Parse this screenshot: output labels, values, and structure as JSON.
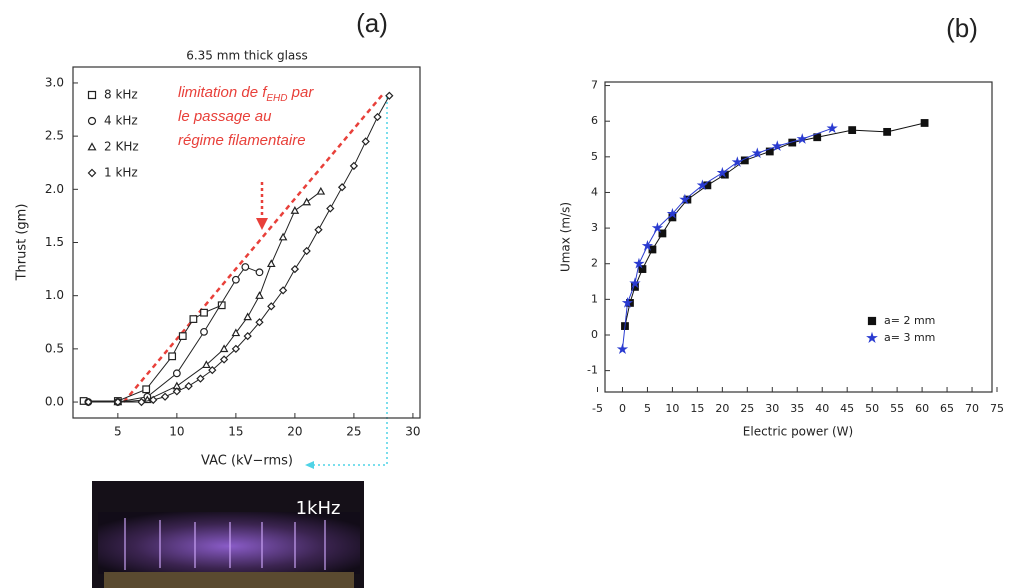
{
  "chart_data": [
    {
      "type": "line",
      "panel_label": "(a)",
      "title": "6.35 mm thick glass",
      "x_label": "VAC (kV−rms)",
      "y_label": "Thrust (gm)",
      "xlim": [
        1.2,
        30.6
      ],
      "ylim": [
        -0.15,
        3.15
      ],
      "xticks": [
        5,
        10,
        15,
        20,
        25,
        30
      ],
      "yticks": [
        {
          "value": 0,
          "label": "0.0"
        },
        {
          "value": 0.5,
          "label": "0.5"
        },
        {
          "value": 1,
          "label": "1.0"
        },
        {
          "value": 1.5,
          "label": "1.5"
        },
        {
          "value": 2,
          "label": "2.0"
        },
        {
          "value": 2.5,
          "label": "2.5"
        },
        {
          "value": 3,
          "label": "3.0"
        }
      ],
      "legend": "upper left",
      "filled_markers": false,
      "series": [
        {
          "name": "8  kHz",
          "marker": "square",
          "color": "#222222",
          "x": [
            2.1,
            5,
            7.4,
            9.6,
            10.5,
            11.4,
            12.3,
            13.8
          ],
          "values": [
            0.01,
            0.01,
            0.12,
            0.43,
            0.62,
            0.78,
            0.84,
            0.91
          ]
        },
        {
          "name": "4  kHz",
          "marker": "circle",
          "color": "#222222",
          "x": [
            2.5,
            5,
            7.5,
            10,
            12.3,
            15,
            15.8,
            17
          ],
          "values": [
            0,
            0,
            0.05,
            0.27,
            0.66,
            1.15,
            1.27,
            1.22
          ]
        },
        {
          "name": "2  KHz",
          "marker": "triangle",
          "color": "#222222",
          "x": [
            5,
            7.5,
            10,
            12.5,
            14,
            15,
            16,
            17,
            18,
            19,
            20,
            21,
            22.2
          ],
          "values": [
            0,
            0.02,
            0.15,
            0.35,
            0.5,
            0.65,
            0.8,
            1.0,
            1.3,
            1.55,
            1.8,
            1.88,
            1.98
          ]
        },
        {
          "name": "1  kHz",
          "marker": "diamond",
          "color": "#222222",
          "x": [
            2.5,
            5,
            7,
            8,
            9,
            10,
            11,
            12,
            13,
            14,
            15,
            16,
            17,
            18,
            19,
            20,
            21,
            22,
            23,
            24,
            25,
            26,
            27,
            28
          ],
          "values": [
            0,
            0,
            0,
            0.02,
            0.05,
            0.1,
            0.15,
            0.22,
            0.3,
            0.4,
            0.5,
            0.62,
            0.75,
            0.9,
            1.05,
            1.25,
            1.42,
            1.62,
            1.82,
            2.02,
            2.22,
            2.45,
            2.68,
            2.88
          ]
        }
      ],
      "annotation_line": {
        "color": "#e8403a",
        "x": [
          5.5,
          27.5
        ],
        "values": [
          0,
          2.9
        ]
      },
      "annotation": {
        "before_subscript": "limitation de f",
        "subscript": "EHD",
        "after_subscript": " par",
        "line2": "le passage au",
        "line3": "régime filamentaire"
      }
    },
    {
      "type": "line",
      "panel_label": "(b)",
      "x_label": "Electric power (W)",
      "y_label": "Umax (m/s)",
      "xlim": [
        -3.5,
        74
      ],
      "ylim": [
        -1.6,
        7.1
      ],
      "xticks": [
        -5,
        0,
        5,
        10,
        15,
        20,
        25,
        30,
        35,
        40,
        45,
        50,
        55,
        60,
        65,
        70,
        75
      ],
      "yticks": [
        -1,
        0,
        1,
        2,
        3,
        4,
        5,
        6,
        7
      ],
      "legend": "lower right",
      "filled_markers": true,
      "series": [
        {
          "name": "a= 2 mm",
          "marker": "square",
          "color": "#111111",
          "x": [
            0.5,
            1.5,
            2.5,
            4,
            6,
            8,
            10,
            13,
            17,
            20.5,
            24.5,
            29.5,
            34,
            39,
            46,
            53,
            60.5
          ],
          "values": [
            0.25,
            0.9,
            1.35,
            1.85,
            2.4,
            2.85,
            3.3,
            3.8,
            4.2,
            4.5,
            4.9,
            5.15,
            5.4,
            5.55,
            5.75,
            5.7,
            5.95
          ]
        },
        {
          "name": "a= 3 mm",
          "marker": "star",
          "color": "#2a3bd0",
          "x": [
            0,
            1,
            2.5,
            3.3,
            5,
            7,
            10,
            12.5,
            16,
            20,
            23,
            27,
            31,
            36,
            42
          ],
          "values": [
            -0.4,
            0.9,
            1.45,
            2.0,
            2.5,
            3.0,
            3.4,
            3.8,
            4.2,
            4.55,
            4.85,
            5.1,
            5.3,
            5.5,
            5.8
          ]
        }
      ]
    }
  ],
  "inset": {
    "label": "1kHz"
  }
}
